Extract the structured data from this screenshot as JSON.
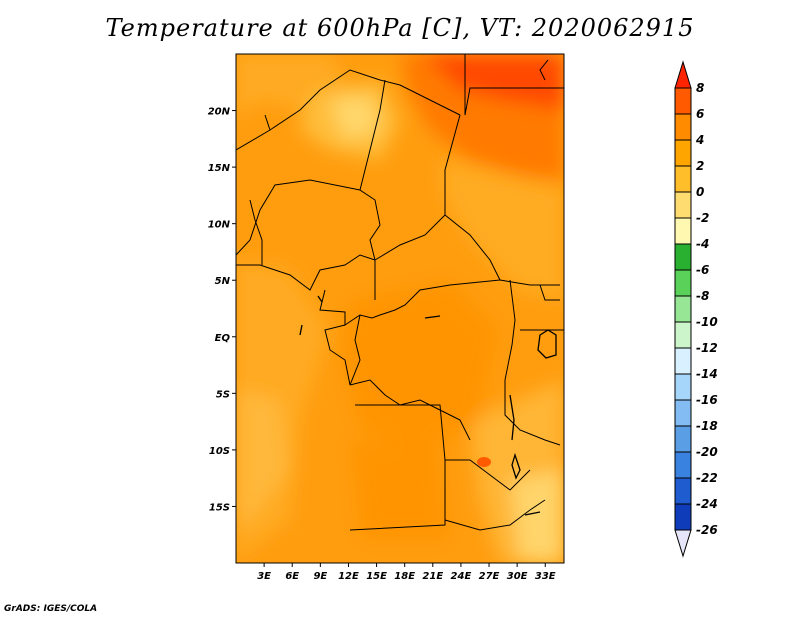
{
  "title": "Temperature at 600hPa [C], VT: 2020062915",
  "credit": "GrADS: IGES/COLA",
  "map": {
    "lon_range": [
      0,
      35
    ],
    "lat_range": [
      -20,
      25
    ],
    "x_ticks": [
      {
        "value": 3,
        "label": "3E"
      },
      {
        "value": 6,
        "label": "6E"
      },
      {
        "value": 9,
        "label": "9E"
      },
      {
        "value": 12,
        "label": "12E"
      },
      {
        "value": 15,
        "label": "15E"
      },
      {
        "value": 18,
        "label": "18E"
      },
      {
        "value": 21,
        "label": "21E"
      },
      {
        "value": 24,
        "label": "24E"
      },
      {
        "value": 27,
        "label": "27E"
      },
      {
        "value": 30,
        "label": "30E"
      },
      {
        "value": 33,
        "label": "33E"
      }
    ],
    "y_ticks": [
      {
        "value": 20,
        "label": "20N"
      },
      {
        "value": 15,
        "label": "15N"
      },
      {
        "value": 10,
        "label": "10N"
      },
      {
        "value": 5,
        "label": "5N"
      },
      {
        "value": 0,
        "label": "EQ"
      },
      {
        "value": -5,
        "label": "5S"
      },
      {
        "value": -10,
        "label": "10S"
      },
      {
        "value": -15,
        "label": "15S"
      }
    ]
  },
  "colorbar": {
    "labels": [
      "8",
      "6",
      "4",
      "2",
      "0",
      "-2",
      "-4",
      "-6",
      "-8",
      "-10",
      "-12",
      "-14",
      "-16",
      "-18",
      "-20",
      "-22",
      "-24",
      "-26"
    ],
    "colors": [
      "#ff2400",
      "#ff5a00",
      "#ff8c00",
      "#ffa500",
      "#ffbe2a",
      "#ffdc70",
      "#fff8b0",
      "#2ab030",
      "#5ad25a",
      "#96e696",
      "#ccf5cc",
      "#d8f0ff",
      "#a6d6fa",
      "#82bcf2",
      "#5a9ee6",
      "#3a82e0",
      "#1e5cd0",
      "#0f3cb8",
      "#0a1e8c",
      "#05054f",
      "#e6e6fa"
    ]
  }
}
